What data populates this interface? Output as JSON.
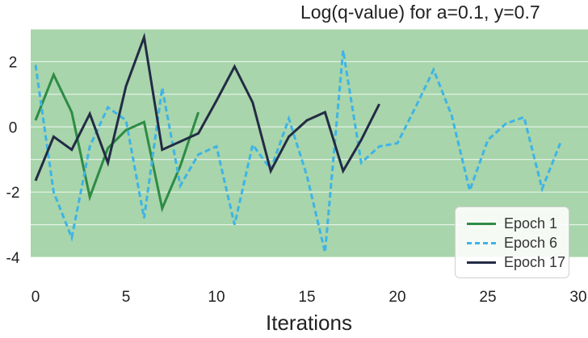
{
  "chart_data": {
    "type": "line",
    "title": "Log(q-value) for a=0.1, y=0.7",
    "xlabel": "Iterations",
    "ylabel": "",
    "xlim": [
      -0.5,
      30
    ],
    "ylim": [
      -4,
      3
    ],
    "x_ticks": [
      0,
      5,
      10,
      15,
      20,
      25,
      30
    ],
    "y_ticks": [
      2,
      0,
      -2,
      -4
    ],
    "grid": true,
    "background": "#a8d5ab",
    "legend_position": "bottom-right",
    "series": [
      {
        "name": "Epoch 1",
        "color": "#2e8b45",
        "style": "solid",
        "x": [
          0,
          1,
          2,
          3,
          4,
          5,
          6,
          7,
          8,
          9
        ],
        "y": [
          0.2,
          1.6,
          0.45,
          -2.15,
          -0.65,
          -0.1,
          0.15,
          -2.5,
          -1.2,
          0.45
        ]
      },
      {
        "name": "Epoch 6",
        "color": "#3eb4e6",
        "style": "dashed",
        "x": [
          0,
          1,
          2,
          3,
          4,
          5,
          6,
          7,
          8,
          9,
          10,
          11,
          12,
          13,
          14,
          15,
          16,
          17,
          18,
          19,
          20,
          21,
          22,
          23,
          24,
          25,
          26,
          27,
          28,
          29
        ],
        "y": [
          1.9,
          -2.0,
          -3.4,
          -0.6,
          0.6,
          0.2,
          -2.8,
          1.2,
          -1.8,
          -0.85,
          -0.6,
          -3.0,
          -0.55,
          -1.3,
          0.25,
          -1.5,
          -3.85,
          2.35,
          -1.1,
          -0.6,
          -0.5,
          0.6,
          1.75,
          0.35,
          -1.95,
          -0.4,
          0.1,
          0.3,
          -1.9,
          -0.5
        ]
      },
      {
        "name": "Epoch 17",
        "color": "#232b45",
        "style": "solid",
        "x": [
          0,
          1,
          2,
          3,
          4,
          5,
          6,
          7,
          8,
          9,
          10,
          11,
          12,
          13,
          14,
          15,
          16,
          17,
          18,
          19
        ],
        "y": [
          -1.65,
          -0.3,
          -0.7,
          0.4,
          -1.1,
          1.25,
          2.75,
          -0.7,
          -0.45,
          -0.2,
          0.8,
          1.85,
          0.75,
          -1.35,
          -0.3,
          0.2,
          0.45,
          -1.35,
          -0.4,
          0.7
        ]
      }
    ]
  }
}
